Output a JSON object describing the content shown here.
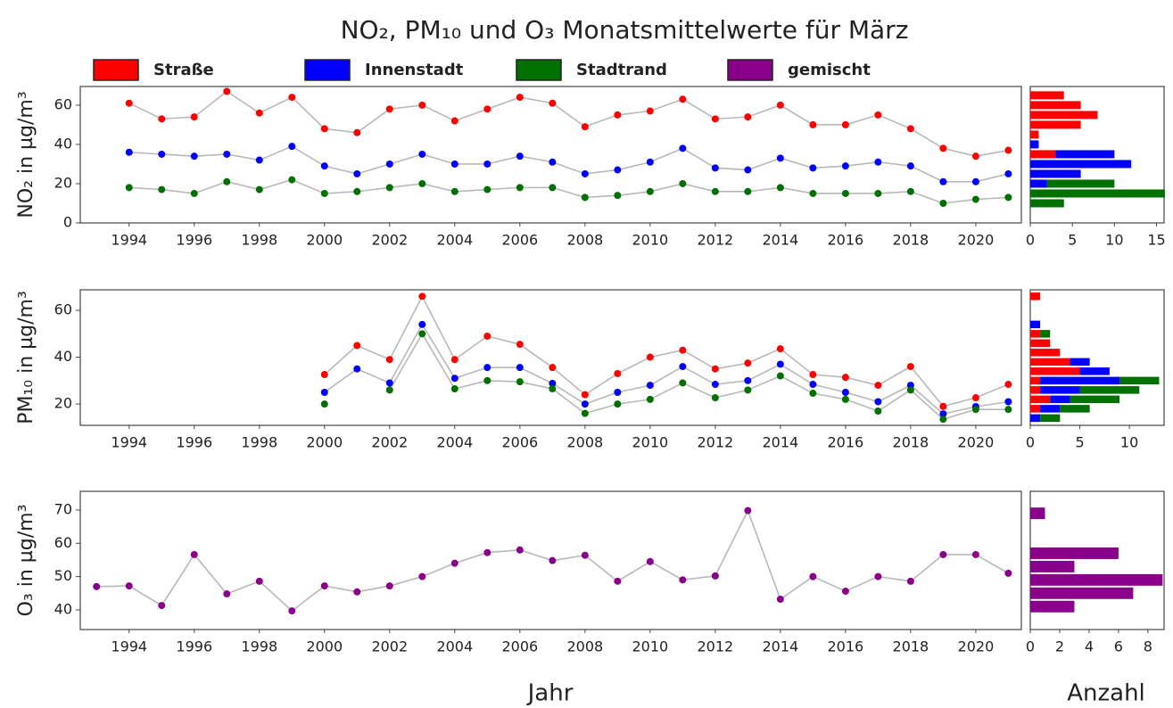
{
  "chart_data": [
    {
      "type": "line",
      "title": "NO₂, PM₁₀ und O₃ Monatsmittelwerte für März",
      "ylabel": "NO₂ in µg/m³",
      "x": [
        1994,
        1995,
        1996,
        1997,
        1998,
        1999,
        2000,
        2001,
        2002,
        2003,
        2004,
        2005,
        2006,
        2007,
        2008,
        2009,
        2010,
        2011,
        2012,
        2013,
        2014,
        2015,
        2016,
        2017,
        2018,
        2019,
        2020,
        2021
      ],
      "xlim": [
        1992.5,
        2021.4
      ],
      "xticks": [
        1994,
        1996,
        1998,
        2000,
        2002,
        2004,
        2006,
        2008,
        2010,
        2012,
        2014,
        2016,
        2018,
        2020
      ],
      "ylim": [
        0,
        69.5
      ],
      "yticks": [
        0,
        20,
        40,
        60
      ],
      "line_color": "#b8b8b8",
      "series": [
        {
          "name": "Straße",
          "color": "#ff0000",
          "values": [
            61,
            53,
            54,
            67,
            56,
            64,
            48,
            46,
            58,
            60,
            52,
            58,
            64,
            61,
            49,
            55,
            57,
            63,
            53,
            54,
            60,
            50,
            50,
            55,
            48,
            38,
            34,
            37
          ]
        },
        {
          "name": "Innenstadt",
          "color": "#0000ff",
          "values": [
            36,
            35,
            34,
            35,
            32,
            39,
            29,
            25,
            30,
            35,
            30,
            30,
            34,
            31,
            25,
            27,
            31,
            38,
            28,
            27,
            33,
            28,
            29,
            31,
            29,
            21,
            21,
            25
          ]
        },
        {
          "name": "Stadtrand",
          "color": "#007000",
          "values": [
            18,
            17,
            15,
            21,
            17,
            22,
            15,
            16,
            18,
            20,
            16,
            17,
            18,
            18,
            13,
            14,
            16,
            20,
            16,
            16,
            18,
            15,
            15,
            15,
            16,
            10,
            12,
            13
          ]
        }
      ]
    },
    {
      "type": "histogram",
      "orientation": "horizontal",
      "stacked": true,
      "bins": [
        7.5,
        12.5,
        17.5,
        22.5,
        27.5,
        32.5,
        37.5,
        42.5,
        47.5,
        52.5,
        57.5,
        62.5,
        67.5
      ],
      "ylim": [
        0,
        69.5
      ],
      "xlim": [
        0,
        15.9
      ],
      "xticks": [
        0,
        5,
        10,
        15
      ],
      "series": [
        {
          "color": "#ff0000",
          "values": [
            0,
            0,
            0,
            0,
            0,
            3,
            0,
            1,
            6,
            8,
            6,
            4
          ]
        },
        {
          "color": "#0000ff",
          "values": [
            0,
            0,
            2,
            6,
            12,
            7,
            1,
            0,
            0,
            0,
            0,
            0
          ]
        },
        {
          "color": "#007000",
          "values": [
            4,
            16,
            8,
            0,
            0,
            0,
            0,
            0,
            0,
            0,
            0,
            0
          ]
        }
      ]
    },
    {
      "type": "line",
      "ylabel": "PM₁₀ in µg/m³",
      "x": [
        1994,
        1995,
        1996,
        1997,
        1998,
        1999,
        2000,
        2001,
        2002,
        2003,
        2004,
        2005,
        2006,
        2007,
        2008,
        2009,
        2010,
        2011,
        2012,
        2013,
        2014,
        2015,
        2016,
        2017,
        2018,
        2019,
        2020,
        2021
      ],
      "xlim": [
        1992.5,
        2021.4
      ],
      "xticks": [
        1994,
        1996,
        1998,
        2000,
        2002,
        2004,
        2006,
        2008,
        2010,
        2012,
        2014,
        2016,
        2018,
        2020
      ],
      "ylim": [
        10.9,
        68.8
      ],
      "yticks": [
        20,
        40,
        60
      ],
      "line_color": "#b8b8b8",
      "series": [
        {
          "name": "Straße",
          "color": "#ff0000",
          "values": [
            null,
            null,
            null,
            null,
            null,
            null,
            32.6,
            45,
            39,
            66,
            39,
            49,
            45.5,
            35.6,
            24,
            33,
            40,
            43,
            35,
            37.5,
            43.6,
            32.6,
            31.4,
            28,
            36,
            19,
            22.7,
            28.4
          ]
        },
        {
          "name": "Innenstadt",
          "color": "#0000ff",
          "values": [
            null,
            null,
            null,
            null,
            null,
            null,
            25,
            35,
            29,
            54,
            31,
            35.6,
            35.6,
            28.8,
            20,
            25,
            28,
            36,
            28.4,
            30,
            37,
            28.4,
            25,
            21,
            28,
            15.8,
            18.9,
            21
          ]
        },
        {
          "name": "Stadtrand",
          "color": "#007000",
          "values": [
            null,
            null,
            null,
            null,
            null,
            null,
            20,
            null,
            26,
            50,
            26.5,
            30,
            29.5,
            26.5,
            16,
            20,
            22,
            29,
            22.7,
            26,
            32,
            24.6,
            22,
            17,
            26,
            13.5,
            17.7,
            17.7
          ]
        }
      ]
    },
    {
      "type": "histogram",
      "orientation": "horizontal",
      "stacked": true,
      "bins": [
        12,
        16,
        20,
        24,
        28,
        32,
        36,
        40,
        44,
        48,
        52,
        56,
        60,
        64,
        68
      ],
      "ylim": [
        10.9,
        68.8
      ],
      "xlim": [
        0,
        13.5
      ],
      "xticks": [
        0,
        5,
        10
      ],
      "series": [
        {
          "color": "#ff0000",
          "values": [
            0,
            1,
            2,
            1,
            1,
            5,
            4,
            3,
            2,
            1,
            0,
            0,
            0,
            1
          ]
        },
        {
          "color": "#0000ff",
          "values": [
            1,
            2,
            2,
            4,
            8,
            3,
            2,
            0,
            0,
            0,
            1,
            0,
            0,
            0
          ]
        },
        {
          "color": "#007000",
          "values": [
            2,
            3,
            5,
            6,
            4,
            0,
            0,
            0,
            0,
            1,
            0,
            0,
            0,
            0
          ]
        }
      ]
    },
    {
      "type": "line",
      "ylabel": "O₃ in µg/m³",
      "xlabel": "Jahr",
      "x": [
        1993,
        1994,
        1995,
        1996,
        1997,
        1998,
        1999,
        2000,
        2001,
        2002,
        2003,
        2004,
        2005,
        2006,
        2007,
        2008,
        2009,
        2010,
        2011,
        2012,
        2013,
        2014,
        2015,
        2016,
        2017,
        2018,
        2019,
        2020,
        2021
      ],
      "xlim": [
        1992.5,
        2021.4
      ],
      "xticks": [
        1994,
        1996,
        1998,
        2000,
        2002,
        2004,
        2006,
        2008,
        2010,
        2012,
        2014,
        2016,
        2018,
        2020
      ],
      "ylim": [
        34.1,
        75.6
      ],
      "yticks": [
        40,
        50,
        60,
        70
      ],
      "line_color": "#b8b8b8",
      "series": [
        {
          "name": "gemischt",
          "color": "#8b008b",
          "values": [
            47,
            47.2,
            41.3,
            56.6,
            44.8,
            48.6,
            39.7,
            47.2,
            45.4,
            47.2,
            50,
            54,
            57.2,
            58,
            54.8,
            56.4,
            48.6,
            54.5,
            49,
            50.2,
            69.8,
            43.2,
            50,
            45.6,
            50,
            48.6,
            56.6,
            56.6,
            51
          ]
        }
      ]
    },
    {
      "type": "histogram",
      "orientation": "horizontal",
      "stacked": true,
      "xlabel": "Anzahl",
      "bins": [
        39,
        43,
        47,
        51,
        55,
        59,
        63,
        67,
        71
      ],
      "ylim": [
        34.1,
        75.6
      ],
      "xlim": [
        0,
        9.1
      ],
      "xticks": [
        0,
        2,
        4,
        6,
        8
      ],
      "series": [
        {
          "color": "#8b008b",
          "values": [
            3,
            7,
            9,
            3,
            6,
            0,
            0,
            1
          ]
        }
      ]
    }
  ]
}
